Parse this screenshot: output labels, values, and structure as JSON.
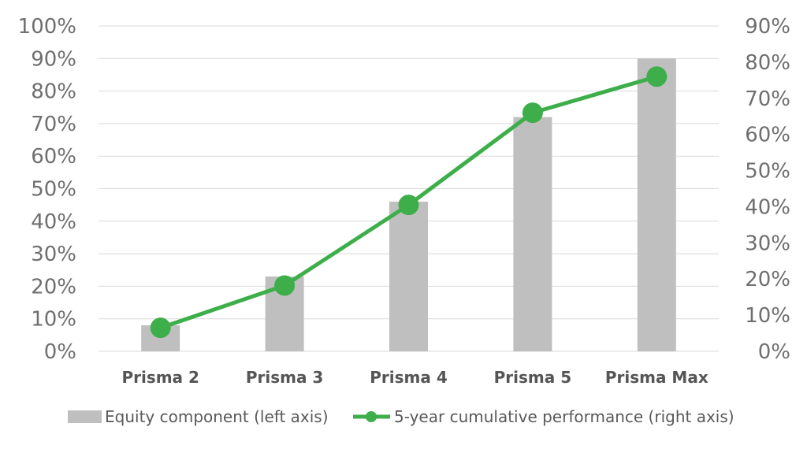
{
  "chart_data": {
    "type": "bar",
    "categories": [
      "Prisma 2",
      "Prisma 3",
      "Prisma 4",
      "Prisma 5",
      "Prisma Max"
    ],
    "series": [
      {
        "name": "Equity component (left axis)",
        "type": "bar",
        "axis": "left",
        "values": [
          8,
          23,
          46,
          72,
          90
        ],
        "color": "#bfbfbf"
      },
      {
        "name": "5-year cumulative performance (right axis)",
        "type": "line",
        "axis": "right",
        "values": [
          6.5,
          18.2,
          40.5,
          66,
          76
        ],
        "color": "#3dae49"
      }
    ],
    "y_left": {
      "ylim": [
        0,
        100
      ],
      "ticks": [
        "0%",
        "10%",
        "20%",
        "30%",
        "40%",
        "50%",
        "60%",
        "70%",
        "80%",
        "90%",
        "100%"
      ]
    },
    "y_right": {
      "ylim": [
        0,
        90
      ],
      "ticks": [
        "0%",
        "10%",
        "20%",
        "30%",
        "40%",
        "50%",
        "60%",
        "70%",
        "80%",
        "90%"
      ]
    },
    "grid": true,
    "legend": "bottom",
    "title": "",
    "xlabel": "",
    "ylabel": ""
  }
}
